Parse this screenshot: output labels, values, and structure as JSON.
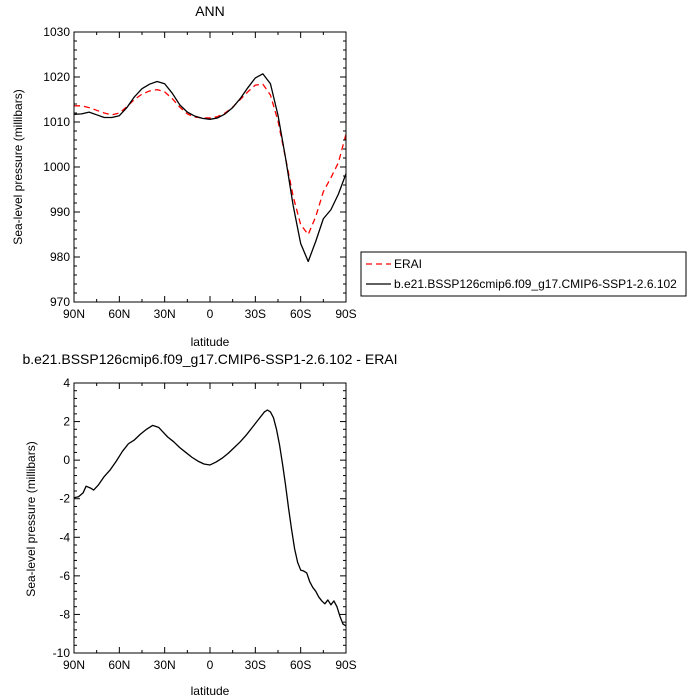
{
  "chart_data": [
    {
      "type": "line",
      "title": "ANN",
      "xlabel": "latitude",
      "ylabel": "Sea-level pressure (millibars)",
      "xlim": [
        90,
        -90
      ],
      "ylim": [
        970,
        1030
      ],
      "x_ticks": [
        90,
        60,
        30,
        0,
        -30,
        -60,
        -90
      ],
      "x_tick_labels": [
        "90N",
        "60N",
        "30N",
        "0",
        "30S",
        "60S",
        "90S"
      ],
      "y_ticks": [
        970,
        980,
        990,
        1000,
        1010,
        1020,
        1030
      ],
      "y_tick_labels": [
        "970",
        "980",
        "990",
        "1000",
        "1010",
        "1020",
        "1030"
      ],
      "legend_position": "right",
      "x": [
        90,
        85,
        80,
        75,
        70,
        65,
        60,
        55,
        50,
        45,
        40,
        35,
        30,
        25,
        20,
        15,
        10,
        5,
        0,
        -5,
        -10,
        -15,
        -20,
        -25,
        -30,
        -35,
        -40,
        -45,
        -50,
        -55,
        -60,
        -65,
        -70,
        -75,
        -80,
        -85,
        -90
      ],
      "series": [
        {
          "name": "ERAI",
          "color": "#ff0000",
          "dash": true,
          "values": [
            1013.6,
            1013.6,
            1013.2,
            1012.6,
            1012.0,
            1011.6,
            1012.0,
            1013.4,
            1015.0,
            1016.2,
            1016.9,
            1017.2,
            1016.7,
            1015.2,
            1013.3,
            1011.8,
            1011.1,
            1010.9,
            1010.9,
            1011.2,
            1012.0,
            1013.3,
            1015.0,
            1016.7,
            1018.2,
            1018.4,
            1016.0,
            1010.2,
            1002.0,
            993.5,
            987.2,
            985.0,
            989.0,
            994.5,
            997.6,
            1001.0,
            1007.3
          ]
        },
        {
          "name": "b.e21.BSSP126cmip6.f09_g17.CMIP6-SSP1-2.6.102",
          "color": "#000000",
          "dash": false,
          "values": [
            1011.7,
            1011.8,
            1012.2,
            1011.6,
            1011.0,
            1011.0,
            1011.4,
            1013.2,
            1015.6,
            1017.4,
            1018.4,
            1019.0,
            1018.5,
            1016.4,
            1013.8,
            1012.2,
            1011.3,
            1010.8,
            1010.6,
            1010.9,
            1011.8,
            1013.2,
            1015.2,
            1017.6,
            1019.8,
            1020.7,
            1018.5,
            1011.5,
            1002.0,
            991.5,
            983.0,
            979.0,
            983.5,
            988.5,
            990.5,
            994.0,
            998.5
          ]
        }
      ]
    },
    {
      "type": "line",
      "title": "b.e21.BSSP126cmip6.f09_g17.CMIP6-SSP1-2.6.102 - ERAI",
      "xlabel": "latitude",
      "ylabel": "Sea-level pressure (millibars)",
      "xlim": [
        90,
        -90
      ],
      "ylim": [
        -10,
        4
      ],
      "x_ticks": [
        90,
        60,
        30,
        0,
        -30,
        -60,
        -90
      ],
      "x_tick_labels": [
        "90N",
        "60N",
        "30N",
        "0",
        "30S",
        "60S",
        "90S"
      ],
      "y_ticks": [
        -10,
        -8,
        -6,
        -4,
        -2,
        0,
        2,
        4
      ],
      "y_tick_labels": [
        "-10",
        "-8",
        "-6",
        "-4",
        "-2",
        "0",
        "2",
        "4"
      ],
      "x": [
        90,
        87,
        84,
        82,
        79,
        77,
        74,
        70,
        66,
        62,
        58,
        54,
        50,
        46,
        42,
        38,
        34,
        31,
        28,
        24,
        20,
        16,
        12,
        8,
        4,
        0,
        -4,
        -8,
        -12,
        -16,
        -20,
        -24,
        -28,
        -32,
        -36,
        -38,
        -40,
        -42,
        -44,
        -46,
        -48,
        -50,
        -52,
        -54,
        -56,
        -58,
        -60,
        -62,
        -64,
        -66,
        -68,
        -70,
        -72,
        -74,
        -76,
        -78,
        -80,
        -82,
        -84,
        -86,
        -88,
        -90
      ],
      "series": [
        {
          "color": "#000000",
          "dash": false,
          "values": [
            -1.95,
            -1.9,
            -1.7,
            -1.35,
            -1.45,
            -1.55,
            -1.3,
            -0.85,
            -0.5,
            -0.05,
            0.45,
            0.85,
            1.05,
            1.35,
            1.6,
            1.8,
            1.7,
            1.45,
            1.2,
            0.95,
            0.65,
            0.4,
            0.15,
            -0.05,
            -0.2,
            -0.25,
            -0.1,
            0.1,
            0.35,
            0.65,
            0.95,
            1.3,
            1.7,
            2.1,
            2.5,
            2.6,
            2.5,
            2.2,
            1.6,
            0.8,
            -0.2,
            -1.3,
            -2.5,
            -3.6,
            -4.6,
            -5.3,
            -5.7,
            -5.75,
            -5.85,
            -6.3,
            -6.6,
            -6.8,
            -7.1,
            -7.3,
            -7.45,
            -7.25,
            -7.5,
            -7.3,
            -7.6,
            -8.1,
            -8.5,
            -8.6
          ]
        }
      ]
    }
  ]
}
